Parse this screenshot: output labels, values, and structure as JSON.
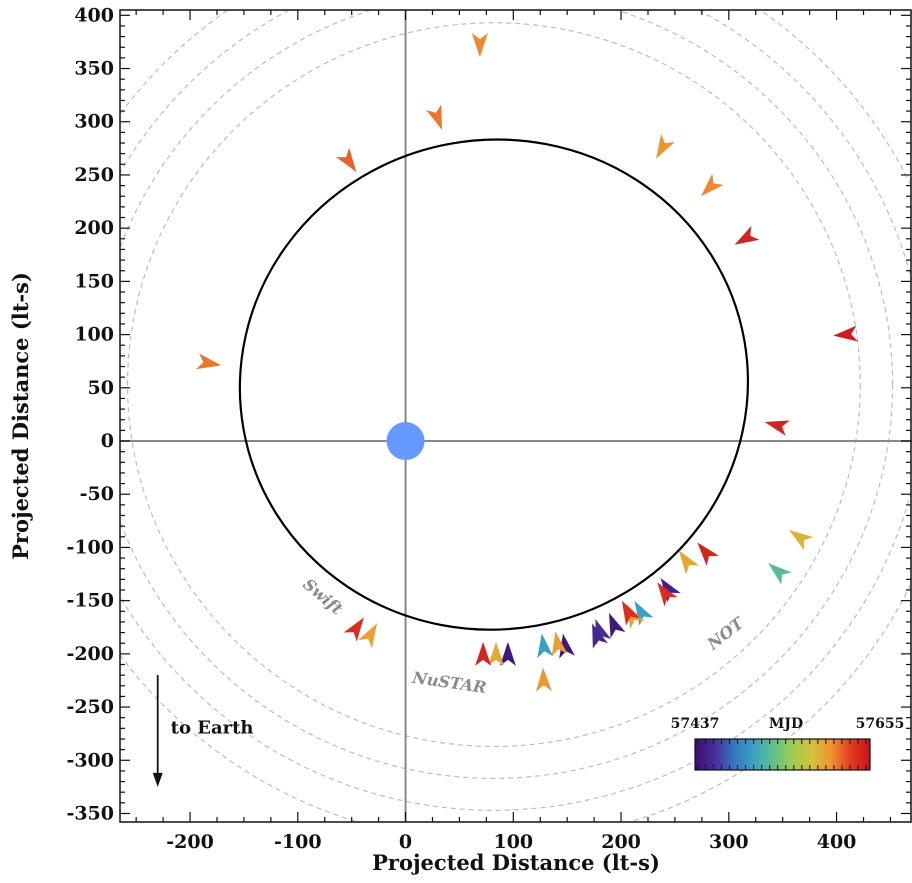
{
  "chart_data": {
    "type": "scatter",
    "title": "",
    "xlabel": "Projected Distance (lt-s)",
    "ylabel": "Projected Distance (lt-s)",
    "xlim": [
      -265,
      470
    ],
    "ylim": [
      -358,
      405
    ],
    "x_ticks": [
      -200,
      -100,
      0,
      100,
      200,
      300,
      400
    ],
    "y_ticks": [
      -350,
      -300,
      -250,
      -200,
      -150,
      -100,
      -50,
      0,
      50,
      100,
      150,
      200,
      250,
      300,
      350,
      400
    ],
    "grid": false,
    "star": {
      "x": 0,
      "y": 0,
      "color": "#6699ff"
    },
    "orbit": {
      "center_x": 82,
      "center_y": 53,
      "semi_axis_x": 236,
      "semi_axis_y": 230,
      "tilt_deg": -10,
      "color": "#000000"
    },
    "reference_circles_radius": [
      340,
      370,
      400,
      430
    ],
    "reference_circle_center": {
      "x": 82,
      "y": 53
    },
    "instrument_labels": [
      {
        "text": "Swift",
        "x": -80,
        "y": -150,
        "angle": 40
      },
      {
        "text": "NuSTAR",
        "x": 40,
        "y": -232,
        "angle": 8
      },
      {
        "text": "NOT",
        "x": 300,
        "y": -185,
        "angle": -38
      }
    ],
    "annotation": {
      "text": "to Earth",
      "x": -218,
      "y": -275
    },
    "colorbar": {
      "label": "MJD",
      "min_label": "57437",
      "max_label": "57655",
      "min": 57437,
      "max": 57655,
      "colors": [
        "#3b0f70",
        "#4a2d99",
        "#3575c0",
        "#3aa1c4",
        "#5fbf8f",
        "#9fcc52",
        "#d6c13b",
        "#f0932f",
        "#e23c22",
        "#c8141d"
      ]
    },
    "arrows": [
      {
        "x": 69,
        "y": 372,
        "mjd": 57610,
        "angle": -90
      },
      {
        "x": 30,
        "y": 303,
        "mjd": 57615,
        "angle": -70
      },
      {
        "x": -52,
        "y": 262,
        "mjd": 57620,
        "angle": -55
      },
      {
        "x": 238,
        "y": 275,
        "mjd": 57605,
        "angle": 240
      },
      {
        "x": 282,
        "y": 238,
        "mjd": 57610,
        "angle": 225
      },
      {
        "x": 315,
        "y": 190,
        "mjd": 57645,
        "angle": 210
      },
      {
        "x": 408,
        "y": 100,
        "mjd": 57650,
        "angle": 185
      },
      {
        "x": 344,
        "y": 15,
        "mjd": 57645,
        "angle": 165
      },
      {
        "x": -182,
        "y": 73,
        "mjd": 57615,
        "angle": -10
      },
      {
        "x": 365,
        "y": -90,
        "mjd": 57590,
        "angle": 145
      },
      {
        "x": 345,
        "y": -122,
        "mjd": 57530,
        "angle": 140
      },
      {
        "x": 278,
        "y": -104,
        "mjd": 57645,
        "angle": 130
      },
      {
        "x": 260,
        "y": -112,
        "mjd": 57595,
        "angle": 125
      },
      {
        "x": 243,
        "y": -138,
        "mjd": 57450,
        "angle": 125
      },
      {
        "x": 240,
        "y": -142,
        "mjd": 57640,
        "angle": 125
      },
      {
        "x": 218,
        "y": -160,
        "mjd": 57510,
        "angle": 120
      },
      {
        "x": 210,
        "y": -163,
        "mjd": 57600,
        "angle": 118
      },
      {
        "x": 206,
        "y": -160,
        "mjd": 57640,
        "angle": 118
      },
      {
        "x": 193,
        "y": -172,
        "mjd": 57445,
        "angle": 112
      },
      {
        "x": 180,
        "y": -178,
        "mjd": 57460,
        "angle": 110
      },
      {
        "x": 177,
        "y": -182,
        "mjd": 57455,
        "angle": 110
      },
      {
        "x": 148,
        "y": -192,
        "mjd": 57445,
        "angle": 100
      },
      {
        "x": 141,
        "y": -190,
        "mjd": 57600,
        "angle": 100
      },
      {
        "x": 128,
        "y": -192,
        "mjd": 57510,
        "angle": 98
      },
      {
        "x": 95,
        "y": -200,
        "mjd": 57445,
        "angle": 90
      },
      {
        "x": 84,
        "y": -200,
        "mjd": 57595,
        "angle": 90
      },
      {
        "x": 72,
        "y": -200,
        "mjd": 57645,
        "angle": 90
      },
      {
        "x": 128,
        "y": -224,
        "mjd": 57605,
        "angle": 92
      },
      {
        "x": -45,
        "y": -175,
        "mjd": 57640,
        "angle": 55
      },
      {
        "x": -32,
        "y": -181,
        "mjd": 57600,
        "angle": 60
      }
    ]
  }
}
